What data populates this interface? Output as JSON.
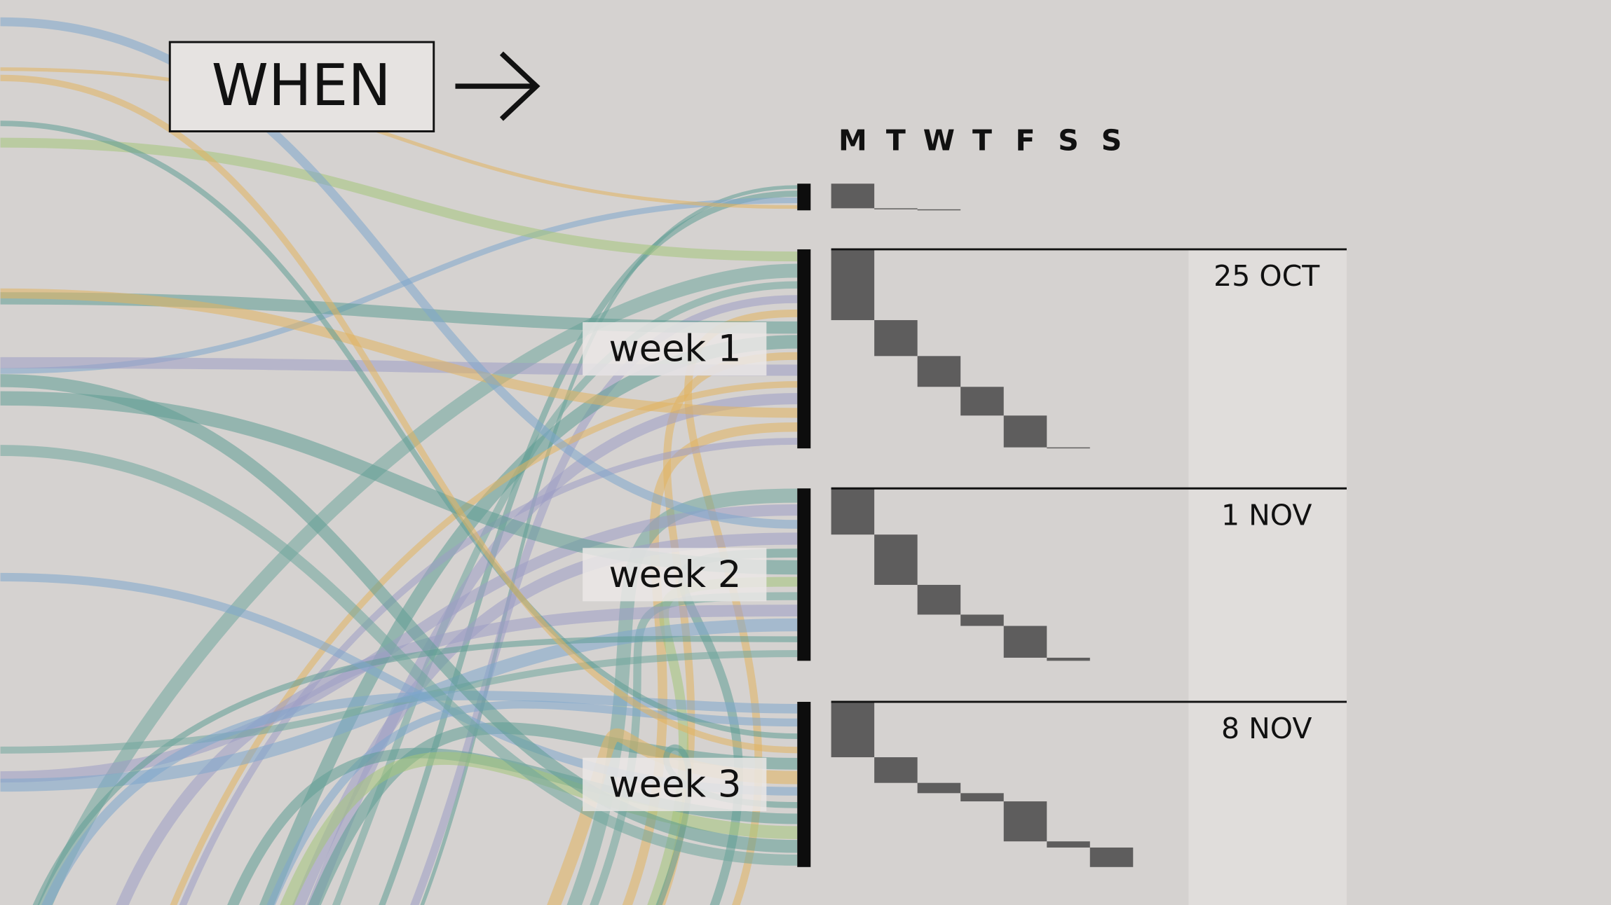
{
  "header": {
    "label": "WHEN"
  },
  "days": [
    "M",
    "T",
    "W",
    "T",
    "F",
    "S",
    "S"
  ],
  "unlabeled_group": {
    "values": [
      24,
      1,
      1,
      0,
      0,
      0,
      0
    ]
  },
  "weeks": [
    {
      "label": "week 1",
      "date": "25 OCT",
      "values": [
        69,
        35,
        30,
        28,
        31,
        1,
        0
      ]
    },
    {
      "label": "week 2",
      "date": "1 NOV",
      "values": [
        45,
        49,
        29,
        11,
        31,
        3,
        0
      ]
    },
    {
      "label": "week 3",
      "date": "8 NOV",
      "values": [
        54,
        25,
        10,
        8,
        39,
        6,
        19
      ]
    }
  ]
}
